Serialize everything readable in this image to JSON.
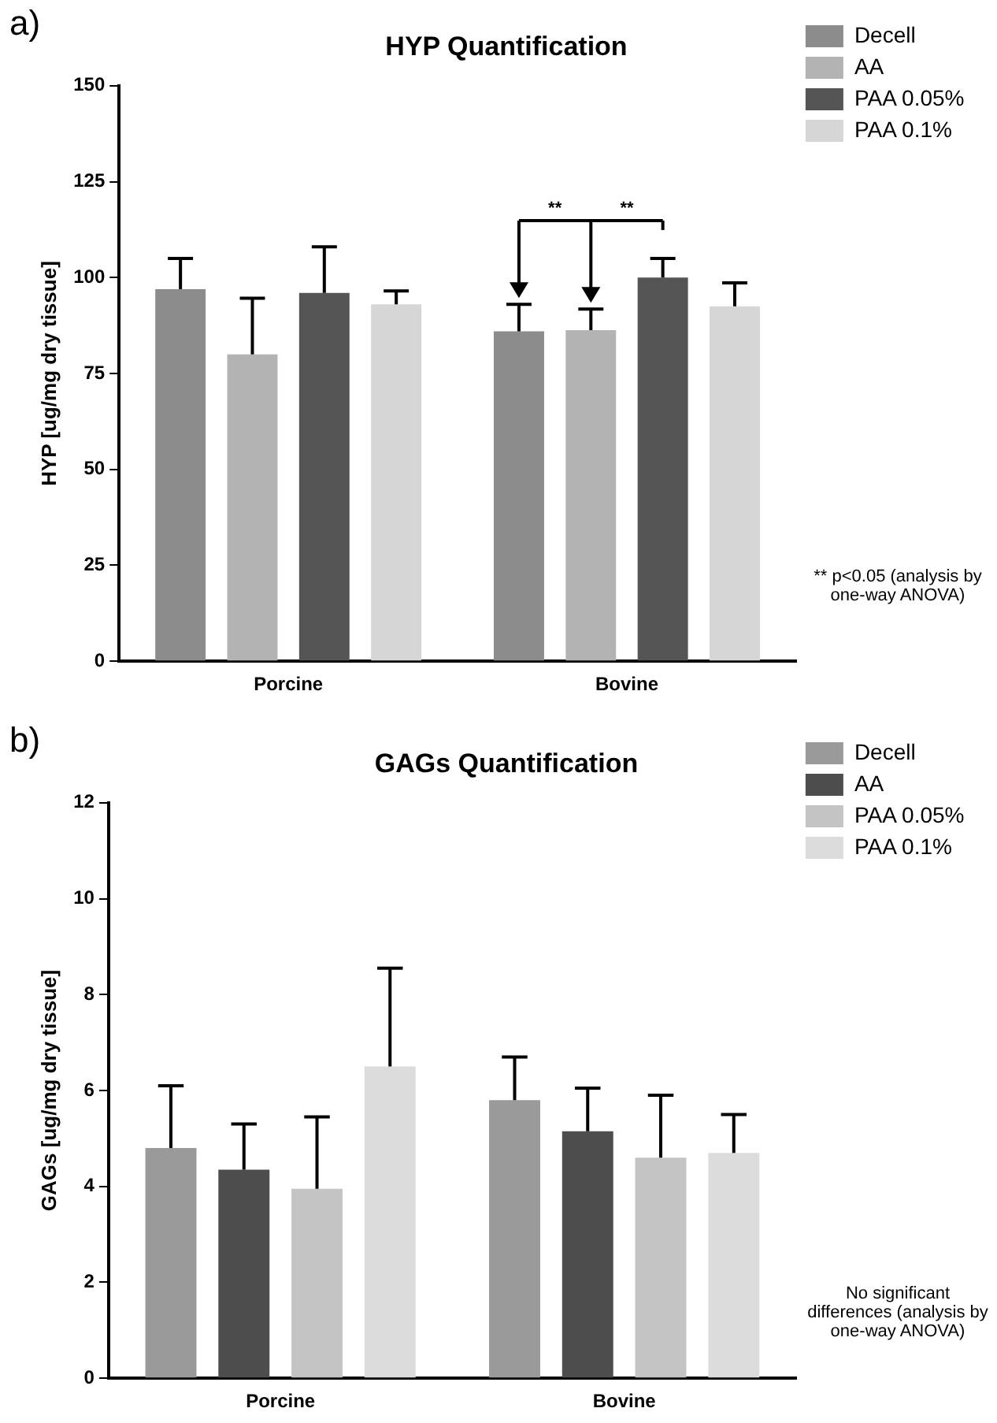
{
  "chart_data": [
    {
      "type": "bar",
      "title": "HYP Quantification",
      "ylabel": "HYP [ug/mg dry tissue]",
      "categories": [
        "Porcine",
        "Bovine"
      ],
      "ylim": [
        0,
        150
      ],
      "yticks": [
        0,
        25,
        50,
        75,
        100,
        125,
        150
      ],
      "grid": false,
      "legend": "top right",
      "series": [
        {
          "name": "Decell",
          "color": "#8c8c8c",
          "values": [
            97,
            86
          ],
          "errors": [
            [
              97,
              105
            ],
            [
              86,
              93
            ]
          ]
        },
        {
          "name": "AA",
          "color": "#b3b3b3",
          "values": [
            80,
            86.3
          ],
          "errors": [
            [
              80,
              94.6
            ],
            [
              86.3,
              91.8
            ]
          ]
        },
        {
          "name": "PAA 0.05%",
          "color": "#555555",
          "values": [
            96,
            100
          ],
          "errors": [
            [
              96,
              108
            ],
            [
              100,
              105
            ]
          ]
        },
        {
          "name": "PAA 0.1%",
          "color": "#d6d6d6",
          "values": [
            93,
            92.5
          ],
          "errors": [
            [
              93,
              96.5
            ],
            [
              92.5,
              98.6
            ]
          ]
        }
      ],
      "annotations": [
        "a)",
        "**",
        "**",
        "** p<0.05 (analysis by one-way ANOVA)"
      ]
    },
    {
      "type": "bar",
      "title": "GAGs Quantification",
      "ylabel": "GAGs [ug/mg dry tissue]",
      "categories": [
        "Porcine",
        "Bovine"
      ],
      "ylim": [
        0,
        12
      ],
      "yticks": [
        0,
        2,
        4,
        6,
        8,
        10,
        12
      ],
      "grid": false,
      "legend": "top right",
      "series": [
        {
          "name": "Decell",
          "color": "#9a9a9a",
          "values": [
            4.8,
            5.8
          ],
          "errors": [
            [
              4.8,
              6.1
            ],
            [
              5.8,
              6.7
            ]
          ]
        },
        {
          "name": "AA",
          "color": "#4d4d4d",
          "values": [
            4.35,
            5.15
          ],
          "errors": [
            [
              4.35,
              5.3
            ],
            [
              5.15,
              6.05
            ]
          ]
        },
        {
          "name": "PAA 0.05%",
          "color": "#c4c4c4",
          "values": [
            3.95,
            4.6
          ],
          "errors": [
            [
              3.95,
              5.45
            ],
            [
              4.6,
              5.9
            ]
          ]
        },
        {
          "name": "PAA 0.1%",
          "color": "#dcdcdc",
          "values": [
            6.5,
            4.7
          ],
          "errors": [
            [
              6.5,
              8.55
            ],
            [
              4.7,
              5.5
            ]
          ]
        }
      ],
      "annotations": [
        "b)",
        "No significant differences (analysis by one-way ANOVA)"
      ]
    }
  ]
}
